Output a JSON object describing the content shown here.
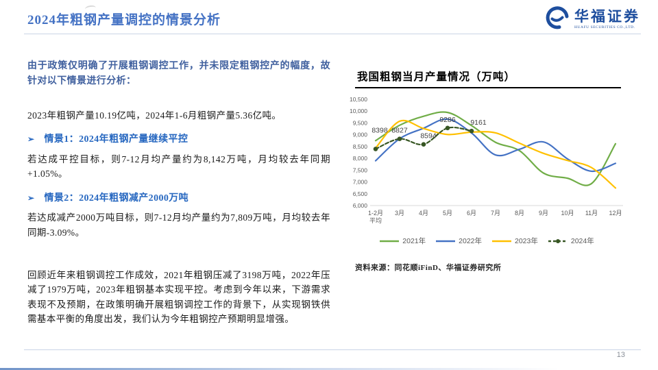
{
  "header": {
    "title": "2024年粗钢产量调控的情景分析"
  },
  "logo": {
    "name": "华福证券",
    "subtitle": "HUAFU SECURITIES CO.,LTD."
  },
  "left_panel": {
    "bullet": "➢",
    "intro": "由于政策仅明确了开展粗钢调控工作，并未限定粗钢控产的幅度，故针对以下情景进行分析：",
    "para1": "2023年粗钢产量10.19亿吨，2024年1-6月粗钢产量5.36亿吨。",
    "s1_title": "情景1：2024年粗钢产量继续平控",
    "s1_body": "若达成平控目标，则7-12月均产量约为8,142万吨，月均较去年同期+1.05%。",
    "s2_title": "情景2：2024年粗钢减产2000万吨",
    "s2_body": "若达成减产2000万吨目标，则7-12月均产量约为7,809万吨，月均较去年同期-3.09%。",
    "closing": "回顾近年来粗钢调控工作成效，2021年粗钢压减了3198万吨，2022年压减了1979万吨，2023年粗钢基本实现平控。考虑到今年以来，下游需求表现不及预期，在政策明确开展粗钢调控工作的背景下，从实现钢铁供需基本平衡的角度出发，我们认为今年粗钢控产预期明显增强。"
  },
  "chart": {
    "title": "我国粗钢当月产量情况（万吨）",
    "source": "资料来源：同花顺iFinD、华福证券研究所"
  },
  "chart_data": {
    "type": "line",
    "title": "我国粗钢当月产量情况（万吨）",
    "categories": [
      "1-2月\n平均",
      "3月",
      "4月",
      "5月",
      "6月",
      "7月",
      "8月",
      "9月",
      "10月",
      "11月",
      "12月"
    ],
    "series": [
      {
        "name": "2021年",
        "color": "#70AD47",
        "dash": false,
        "marker": false,
        "values": [
          8750,
          9402,
          9785,
          9945,
          9388,
          8679,
          8324,
          7375,
          7158,
          6931,
          8619
        ]
      },
      {
        "name": "2022年",
        "color": "#4472C4",
        "dash": false,
        "marker": false,
        "values": [
          7898,
          8830,
          9278,
          9661,
          9073,
          8143,
          8387,
          8695,
          7976,
          7454,
          7789
        ]
      },
      {
        "name": "2023年",
        "color": "#FFC000",
        "dash": false,
        "marker": false,
        "values": [
          8435,
          9573,
          9264,
          9012,
          9111,
          9080,
          8641,
          8211,
          7909,
          7610,
          6744
        ]
      },
      {
        "name": "2024年",
        "color": "#375623",
        "dash": true,
        "marker": true,
        "values": [
          8398,
          8827,
          8594,
          9286,
          9161
        ],
        "labels": [
          "8398",
          "8827",
          "8594",
          "9286",
          "9161"
        ]
      }
    ],
    "ylim": [
      6000,
      10500
    ],
    "ytick_step": 500,
    "grid": false,
    "legend_position": "bottom",
    "axis_color": "#D9D9D9",
    "tick_color": "#595959"
  },
  "footer": {
    "page_number": "13"
  }
}
